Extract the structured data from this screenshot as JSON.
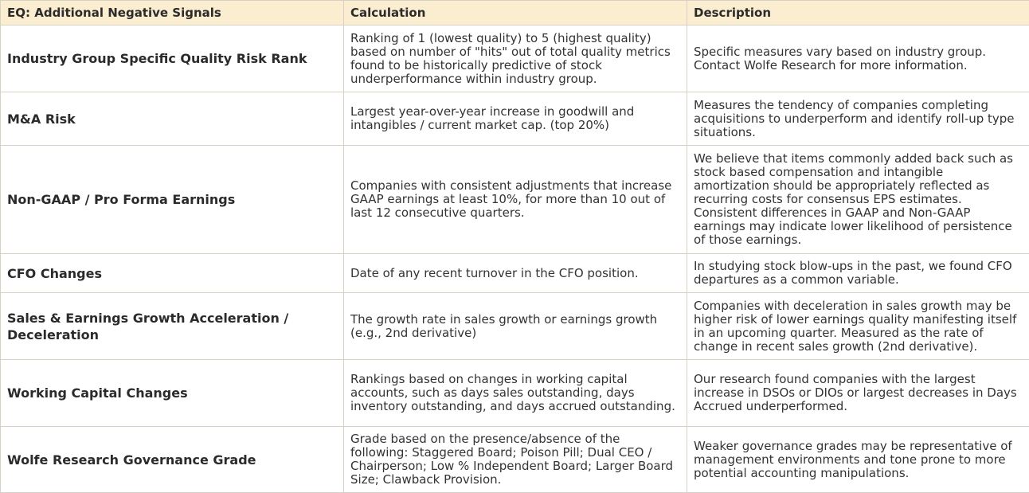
{
  "table": {
    "headers": {
      "signal": "EQ: Additional Negative Signals",
      "calculation": "Calculation",
      "description": "Description"
    },
    "rows": [
      {
        "signal": "Industry Group Specific Quality Risk Rank",
        "calculation": "Ranking of 1 (lowest quality) to 5 (highest quality) based on number of \"hits\" out of total quality metrics found to be historically predictive of stock underperformance within industry group.",
        "description": "Specific measures vary based on industry group. Contact Wolfe Research for more information."
      },
      {
        "signal": "M&A Risk",
        "calculation": "Largest year-over-year increase in goodwill and intangibles / current market cap. (top 20%)",
        "description": "Measures the tendency of companies completing acquisitions to underperform and identify roll-up type situations."
      },
      {
        "signal": "Non-GAAP / Pro Forma Earnings",
        "calculation": "Companies with consistent adjustments that increase GAAP earnings at least 10%, for more than 10 out of last 12 consecutive quarters.",
        "description": "We believe that items commonly added back such as stock based compensation and intangible amortization should be appropriately reflected as recurring costs for consensus EPS estimates. Consistent differences in GAAP and Non-GAAP earnings may indicate lower likelihood of persistence of those earnings."
      },
      {
        "signal": "CFO Changes",
        "calculation": "Date of any recent turnover in the CFO position.",
        "description": "In studying stock blow-ups in the past, we found CFO departures as a common variable."
      },
      {
        "signal": "Sales & Earnings Growth Acceleration / Deceleration",
        "calculation": "The growth rate in sales growth or earnings growth (e.g., 2nd derivative)",
        "description": "Companies with deceleration in sales growth may be higher risk of lower earnings quality manifesting itself in an upcoming quarter. Measured as the rate of change in recent sales growth (2nd derivative)."
      },
      {
        "signal": "Working Capital Changes",
        "calculation": "Rankings based on changes in working capital accounts, such as days sales outstanding, days inventory outstanding, and days accrued outstanding.",
        "description": "Our research found companies with the largest increase in DSOs or DIOs or largest decreases in Days Accrued underperformed."
      },
      {
        "signal": "Wolfe Research Governance Grade",
        "calculation": "Grade based on the presence/absence of the following: Staggered Board; Poison Pill; Dual CEO / Chairperson; Low % Independent Board; Larger Board Size; Clawback Provision.",
        "description": "Weaker governance grades may be representative of management environments and tone prone to more potential accounting manipulations."
      }
    ]
  }
}
